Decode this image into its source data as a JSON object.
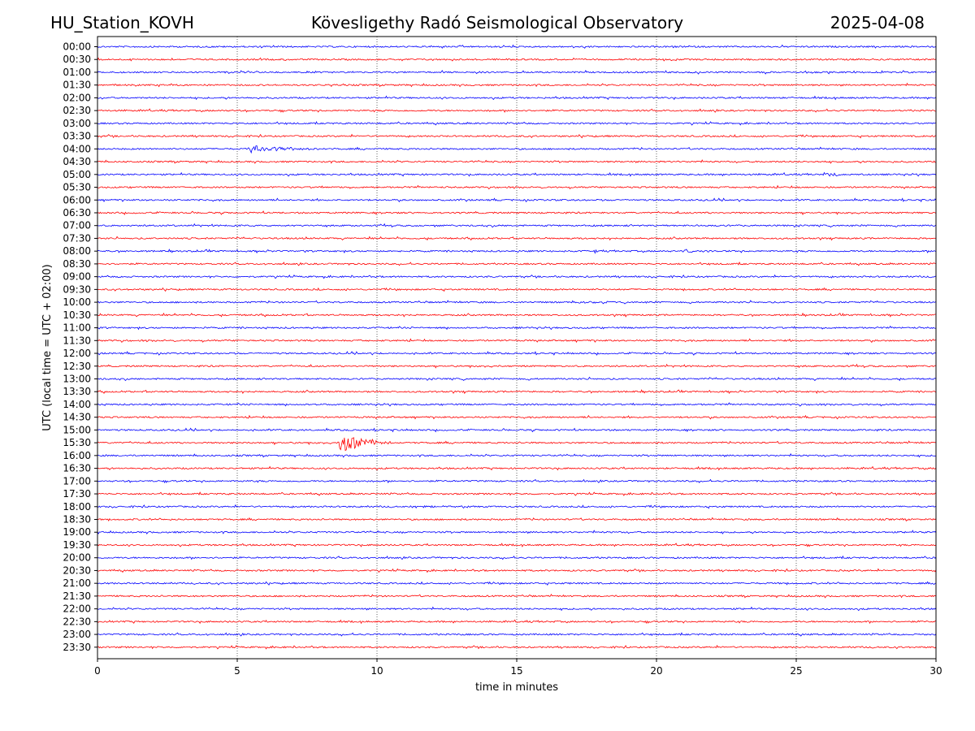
{
  "header": {
    "station": "HU_Station_KOVH",
    "observatory": "Kövesligethy Radó Seismological Observatory",
    "date": "2025-04-08"
  },
  "chart_data": {
    "type": "line",
    "title": "Kövesligethy Radó Seismological Observatory",
    "xlabel": "time in minutes",
    "ylabel": "UTC (local time = UTC + 02:00)",
    "xlim": [
      0,
      30
    ],
    "x_ticks": [
      "0",
      "5",
      "10",
      "15",
      "20",
      "25",
      "30"
    ],
    "vertical_grid_minutes": [
      5,
      10,
      15,
      20,
      25
    ],
    "grid": "vertical dotted",
    "trace_colors": [
      "#0000ff",
      "#ff0000"
    ],
    "rows": [
      "00:00",
      "00:30",
      "01:00",
      "01:30",
      "02:00",
      "02:30",
      "03:00",
      "03:30",
      "04:00",
      "04:30",
      "05:00",
      "05:30",
      "06:00",
      "06:30",
      "07:00",
      "07:30",
      "08:00",
      "08:30",
      "09:00",
      "09:30",
      "10:00",
      "10:30",
      "11:00",
      "11:30",
      "12:00",
      "12:30",
      "13:00",
      "13:30",
      "14:00",
      "14:30",
      "15:00",
      "15:30",
      "16:00",
      "16:30",
      "17:00",
      "17:30",
      "18:00",
      "18:30",
      "19:00",
      "19:30",
      "20:00",
      "20:30",
      "21:00",
      "21:30",
      "22:00",
      "22:30",
      "23:00",
      "23:30"
    ],
    "events": [
      {
        "row": "04:00",
        "start_min": 5.4,
        "end_min": 8.5,
        "amplitude": 1.8
      },
      {
        "row": "05:00",
        "start_min": 26.0,
        "end_min": 28.0,
        "amplitude": 0.8
      },
      {
        "row": "08:00",
        "start_min": 17.8,
        "end_min": 18.0,
        "amplitude": 1.2
      },
      {
        "row": "08:00",
        "start_min": 21.0,
        "end_min": 22.3,
        "amplitude": 0.8
      },
      {
        "row": "10:00",
        "start_min": 17.2,
        "end_min": 18.8,
        "amplitude": 0.7
      },
      {
        "row": "15:30",
        "start_min": 8.65,
        "end_min": 11.0,
        "amplitude": 5.0
      },
      {
        "row": "18:00",
        "start_min": 11.0,
        "end_min": 13.5,
        "amplitude": 0.6
      }
    ]
  }
}
